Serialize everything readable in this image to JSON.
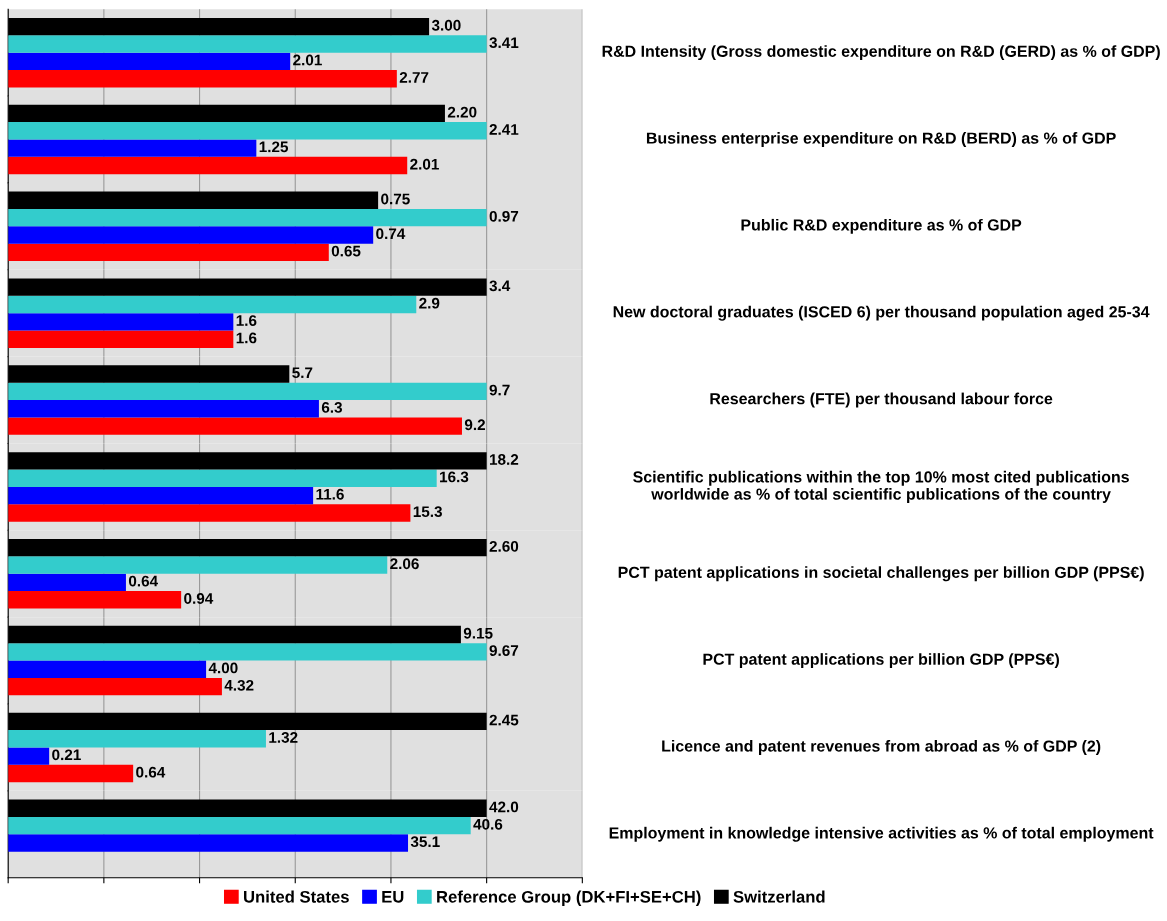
{
  "chart_data": [
    {
      "type": "bar",
      "orientation": "horizontal",
      "grid": "x",
      "legend": "bottom",
      "categories": [
        "R&D Intensity (Gross domestic expenditure on R&D (GERD) as % of GDP)"
      ],
      "series": [
        {
          "name": "United States",
          "color": "#ff0000",
          "values": [
            2.77
          ],
          "value_labels": [
            "2.77"
          ]
        },
        {
          "name": "EU",
          "color": "#0000ff",
          "values": [
            2.01
          ],
          "value_labels": [
            "2.01"
          ]
        },
        {
          "name": "Reference Group (DK+FI+SE+CH)",
          "color": "#33cccc",
          "values": [
            3.41
          ],
          "value_labels": [
            "3.41"
          ]
        },
        {
          "name": "Switzerland",
          "color": "#000000",
          "values": [
            3.0
          ],
          "value_labels": [
            "3.00"
          ]
        }
      ]
    },
    {
      "type": "bar",
      "orientation": "horizontal",
      "grid": "x",
      "categories": [
        "Business enterprise expenditure on R&D (BERD) as % of GDP"
      ],
      "series": [
        {
          "color": "#ff0000",
          "values": [
            2.01
          ],
          "value_labels": [
            "2.01"
          ]
        },
        {
          "color": "#0000ff",
          "values": [
            1.25
          ],
          "value_labels": [
            "1.25"
          ]
        },
        {
          "color": "#33cccc",
          "values": [
            2.41
          ],
          "value_labels": [
            "2.41"
          ]
        },
        {
          "color": "#000000",
          "values": [
            2.2
          ],
          "value_labels": [
            "2.20"
          ]
        }
      ]
    },
    {
      "type": "bar",
      "orientation": "horizontal",
      "grid": "x",
      "categories": [
        "Public R&D expenditure as % of GDP"
      ],
      "series": [
        {
          "color": "#ff0000",
          "values": [
            0.65
          ],
          "value_labels": [
            "0.65"
          ]
        },
        {
          "color": "#0000ff",
          "values": [
            0.74
          ],
          "value_labels": [
            "0.74"
          ]
        },
        {
          "color": "#33cccc",
          "values": [
            0.97
          ],
          "value_labels": [
            "0.97"
          ]
        },
        {
          "color": "#000000",
          "values": [
            0.75
          ],
          "value_labels": [
            "0.75"
          ]
        }
      ]
    },
    {
      "type": "bar",
      "orientation": "horizontal",
      "grid": "x",
      "categories": [
        "New doctoral graduates (ISCED 6) per thousand population aged 25-34"
      ],
      "series": [
        {
          "color": "#ff0000",
          "values": [
            1.6
          ],
          "value_labels": [
            "1.6"
          ]
        },
        {
          "color": "#0000ff",
          "values": [
            1.6
          ],
          "value_labels": [
            "1.6"
          ]
        },
        {
          "color": "#33cccc",
          "values": [
            2.9
          ],
          "value_labels": [
            "2.9"
          ]
        },
        {
          "color": "#000000",
          "values": [
            3.4
          ],
          "value_labels": [
            "3.4"
          ]
        }
      ]
    },
    {
      "type": "bar",
      "orientation": "horizontal",
      "grid": "x",
      "categories": [
        "Researchers (FTE) per thousand labour force"
      ],
      "series": [
        {
          "color": "#ff0000",
          "values": [
            9.2
          ],
          "value_labels": [
            "9.2"
          ]
        },
        {
          "color": "#0000ff",
          "values": [
            6.3
          ],
          "value_labels": [
            "6.3"
          ]
        },
        {
          "color": "#33cccc",
          "values": [
            9.7
          ],
          "value_labels": [
            "9.7"
          ]
        },
        {
          "color": "#000000",
          "values": [
            5.7
          ],
          "value_labels": [
            "5.7"
          ]
        }
      ]
    },
    {
      "type": "bar",
      "orientation": "horizontal",
      "grid": "x",
      "categories": [
        "Scientific publications within the top 10% most cited publications worldwide as % of total scientific publications of the country"
      ],
      "series": [
        {
          "color": "#ff0000",
          "values": [
            15.3
          ],
          "value_labels": [
            "15.3"
          ]
        },
        {
          "color": "#0000ff",
          "values": [
            11.6
          ],
          "value_labels": [
            "11.6"
          ]
        },
        {
          "color": "#33cccc",
          "values": [
            16.3
          ],
          "value_labels": [
            "16.3"
          ]
        },
        {
          "color": "#000000",
          "values": [
            18.2
          ],
          "value_labels": [
            "18.2"
          ]
        }
      ]
    },
    {
      "type": "bar",
      "orientation": "horizontal",
      "grid": "x",
      "categories": [
        "PCT patent applications in societal challenges per billion GDP (PPS€)"
      ],
      "series": [
        {
          "color": "#ff0000",
          "values": [
            0.94
          ],
          "value_labels": [
            "0.94"
          ]
        },
        {
          "color": "#0000ff",
          "values": [
            0.64
          ],
          "value_labels": [
            "0.64"
          ]
        },
        {
          "color": "#33cccc",
          "values": [
            2.06
          ],
          "value_labels": [
            "2.06"
          ]
        },
        {
          "color": "#000000",
          "values": [
            2.6
          ],
          "value_labels": [
            "2.60"
          ]
        }
      ]
    },
    {
      "type": "bar",
      "orientation": "horizontal",
      "grid": "x",
      "categories": [
        "PCT patent applications per billion GDP (PPS€)"
      ],
      "series": [
        {
          "color": "#ff0000",
          "values": [
            4.32
          ],
          "value_labels": [
            "4.32"
          ]
        },
        {
          "color": "#0000ff",
          "values": [
            4.0
          ],
          "value_labels": [
            "4.00"
          ]
        },
        {
          "color": "#33cccc",
          "values": [
            9.67
          ],
          "value_labels": [
            "9.67"
          ]
        },
        {
          "color": "#000000",
          "values": [
            9.15
          ],
          "value_labels": [
            "9.15"
          ]
        }
      ]
    },
    {
      "type": "bar",
      "orientation": "horizontal",
      "grid": "x",
      "categories": [
        "Licence and patent revenues from abroad as % of GDP (2)"
      ],
      "series": [
        {
          "color": "#ff0000",
          "values": [
            0.64
          ],
          "value_labels": [
            "0.64"
          ]
        },
        {
          "color": "#0000ff",
          "values": [
            0.21
          ],
          "value_labels": [
            "0.21"
          ]
        },
        {
          "color": "#33cccc",
          "values": [
            1.32
          ],
          "value_labels": [
            "1.32"
          ]
        },
        {
          "color": "#000000",
          "values": [
            2.45
          ],
          "value_labels": [
            "2.45"
          ]
        }
      ]
    },
    {
      "type": "bar",
      "orientation": "horizontal",
      "grid": "x",
      "categories": [
        "Employment in knowledge intensive activities as % of total employment"
      ],
      "series": [
        {
          "values": [
            null
          ],
          "value_labels": [
            null
          ]
        },
        {
          "color": "#0000ff",
          "values": [
            35.1
          ],
          "value_labels": [
            "35.1"
          ]
        },
        {
          "color": "#33cccc",
          "values": [
            40.6
          ],
          "value_labels": [
            "40.6"
          ]
        },
        {
          "color": "#000000",
          "values": [
            42.0
          ],
          "value_labels": [
            "42.0"
          ]
        }
      ]
    }
  ]
}
